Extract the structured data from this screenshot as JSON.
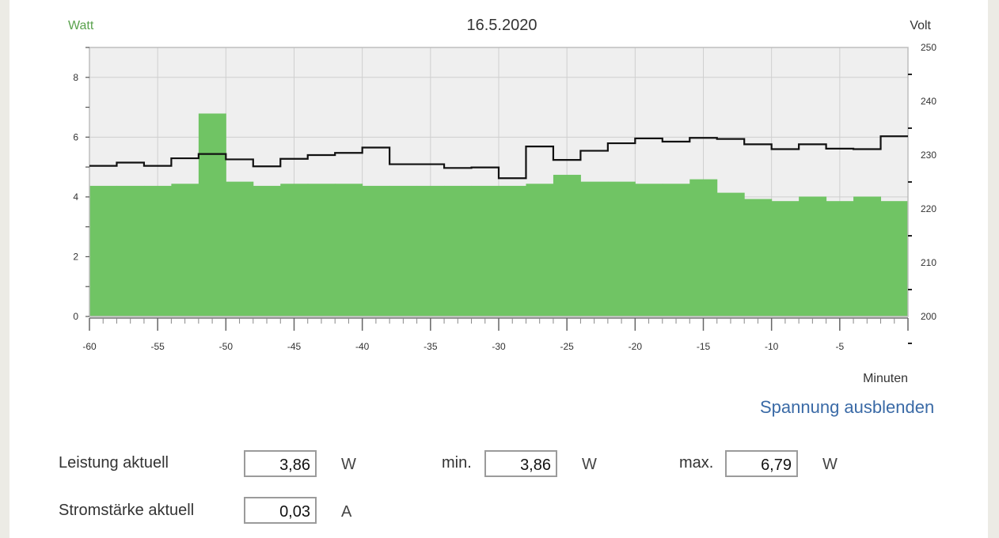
{
  "chart_data": {
    "type": "bar",
    "title": "16.5.2020",
    "ylabel": "Watt",
    "y2label": "Volt",
    "xlabel": "Minuten",
    "xlim": [
      -60,
      0
    ],
    "ylim": [
      0,
      9
    ],
    "y2lim": [
      200,
      250
    ],
    "grid": true,
    "xticks": [
      -60,
      -55,
      -50,
      -45,
      -40,
      -35,
      -30,
      -25,
      -20,
      -15,
      -10,
      -5
    ],
    "yticks": [
      0,
      2,
      4,
      6,
      8
    ],
    "y2ticks": [
      200,
      210,
      220,
      230,
      240,
      250
    ],
    "x": [
      -60,
      -58,
      -56,
      -54,
      -52,
      -50,
      -48,
      -46,
      -44,
      -42,
      -40,
      -38,
      -36,
      -34,
      -32,
      -30,
      -28,
      -26,
      -24,
      -22,
      -20,
      -18,
      -16,
      -14,
      -12,
      -10,
      -8,
      -6,
      -4,
      -2
    ],
    "series": [
      {
        "name": "Watt",
        "axis": "left",
        "color": "#70c464",
        "values": [
          4.37,
          4.37,
          4.37,
          4.44,
          6.79,
          4.51,
          4.37,
          4.44,
          4.44,
          4.44,
          4.37,
          4.37,
          4.37,
          4.37,
          4.37,
          4.37,
          4.44,
          4.74,
          4.51,
          4.51,
          4.44,
          4.44,
          4.59,
          4.14,
          3.93,
          3.86,
          4.01,
          3.86,
          4.01,
          3.86
        ]
      },
      {
        "name": "Volt",
        "axis": "right",
        "color": "#111111",
        "values": [
          228.0,
          228.6,
          228.0,
          229.4,
          230.2,
          229.2,
          227.9,
          229.3,
          230.0,
          230.4,
          231.4,
          228.3,
          228.3,
          227.6,
          227.7,
          225.7,
          231.6,
          229.1,
          230.8,
          232.2,
          233.1,
          232.5,
          233.2,
          233.0,
          232.0,
          231.1,
          232.0,
          231.2,
          231.1,
          233.5
        ]
      }
    ]
  },
  "controls": {
    "toggle_label": "Spannung ausblenden"
  },
  "stats": {
    "power_label": "Leistung aktuell",
    "power_value": "3,86",
    "power_unit": "W",
    "min_label": "min.",
    "min_value": "3,86",
    "min_unit": "W",
    "max_label": "max.",
    "max_value": "6,79",
    "max_unit": "W",
    "current_label": "Stromstärke aktuell",
    "current_value": "0,03",
    "current_unit": "A"
  },
  "colors": {
    "bar": "#70c464",
    "watt_label": "#5aa24e",
    "link": "#3a6aa6",
    "plot_bg": "#efefef"
  }
}
